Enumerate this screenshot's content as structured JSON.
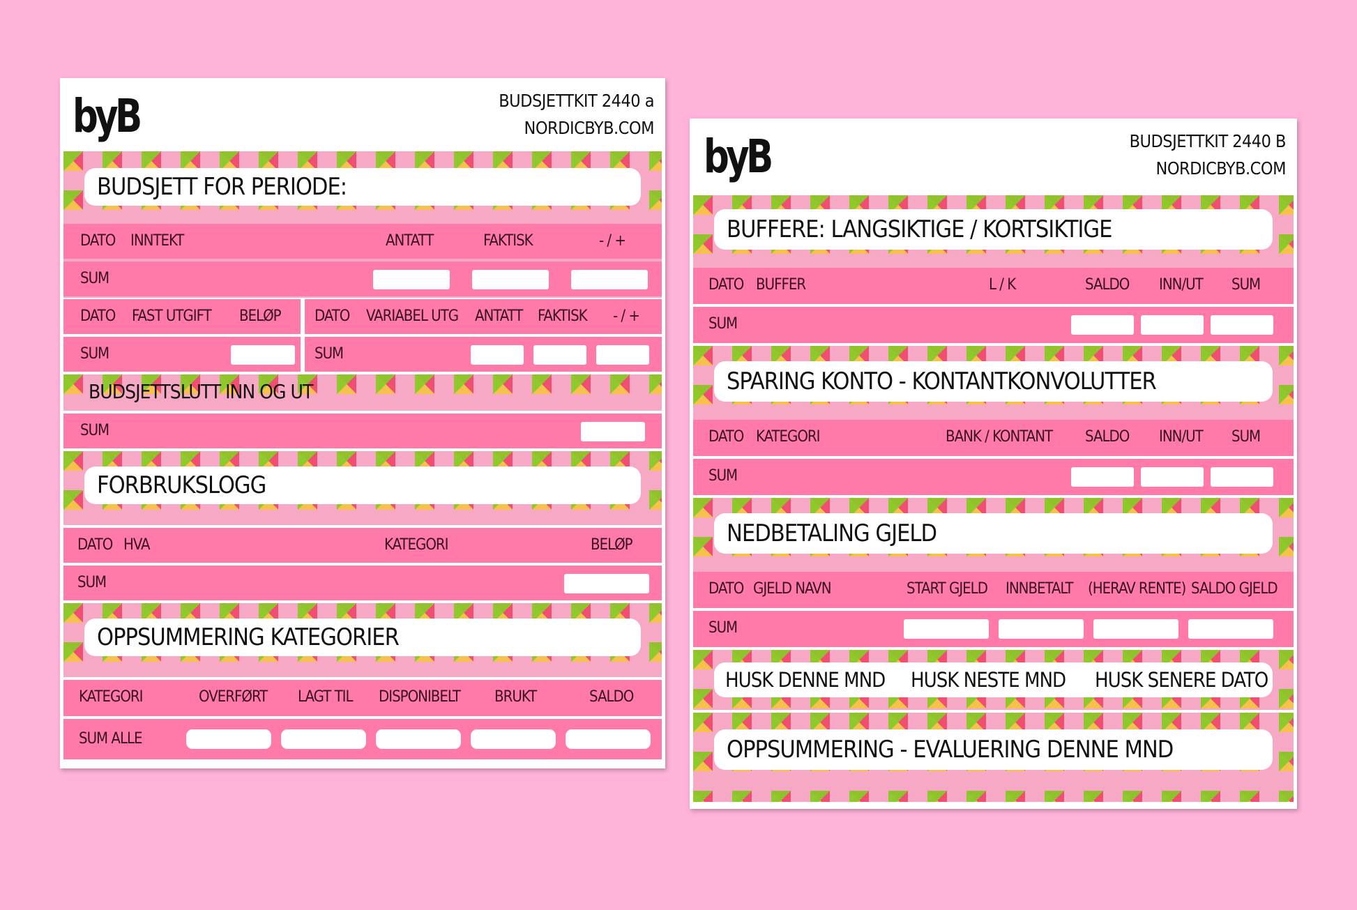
{
  "sheet_a": {
    "logo": "byB",
    "kit_title": "BUDSJETTKIT 2440 a",
    "site": "NORDICBYB.COM",
    "budget_title": "BUDSJETT FOR PERIODE:",
    "income_headers": [
      "DATO",
      "INNTEKT",
      "ANTATT",
      "FAKTISK",
      "- / +"
    ],
    "sum": "SUM",
    "fixed_headers": [
      "DATO",
      "FAST UTGIFT",
      "BELØP"
    ],
    "variable_headers": [
      "DATO",
      "VARIABEL UTG",
      "ANTATT",
      "FAKTISK",
      "- / +"
    ],
    "summary_band": "BUDSJETTSLUTT INN OG UT",
    "usage_title": "FORBRUKSLOGG",
    "usage_headers": [
      "DATO",
      "HVA",
      "KATEGORI",
      "BELØP"
    ],
    "categories_title": "OPPSUMMERING KATEGORIER",
    "category_headers": [
      "KATEGORI",
      "OVERFØRT",
      "LAGT TIL",
      "DISPONIBELT",
      "BRUKT",
      "SALDO"
    ],
    "sum_all": "SUM ALLE"
  },
  "sheet_b": {
    "logo": "byB",
    "kit_title": "BUDSJETTKIT 2440 B",
    "site": "NORDICBYB.COM",
    "buffers_title": "BUFFERE: LANGSIKTIGE / KORTSIKTIGE",
    "buffer_headers": [
      "DATO",
      "BUFFER",
      "L / K",
      "SALDO",
      "INN/UT",
      "SUM"
    ],
    "sum": "SUM",
    "savings_title": "SPARING KONTO - KONTANTKONVOLUTTER",
    "savings_headers": [
      "DATO",
      "KATEGORI",
      "BANK / KONTANT",
      "SALDO",
      "INN/UT",
      "SUM"
    ],
    "debt_title": "NEDBETALING GJELD",
    "debt_headers": [
      "DATO",
      "GJELD NAVN",
      "START GJELD",
      "INNBETALT",
      "(HERAV RENTE)",
      "SALDO GJELD"
    ],
    "reminders": [
      "HUSK DENNE MND",
      "HUSK NESTE MND",
      "HUSK SENERE DATO"
    ],
    "evaluation_title": "OPPSUMMERING - EVALUERING DENNE MND"
  },
  "colors": {
    "background": "#ffb3d9",
    "row_pink": "#ff7aa8",
    "band_green": "#8cc828",
    "band_magenta": "#f03c78",
    "band_orange": "#fabe46"
  }
}
